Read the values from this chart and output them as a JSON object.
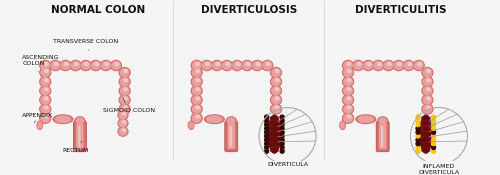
{
  "background_color": "#f5f5f5",
  "title1": "NORMAL COLON",
  "title2": "DIVERTICULOSIS",
  "title3": "DIVERTICULITIS",
  "colon_outer": "#d4706a",
  "colon_mid": "#e8a0a0",
  "colon_inner": "#f2c0c0",
  "colon_highlight": "#f8d8d8",
  "colon_shadow": "#b84040",
  "inflamed_dark": "#7a1010",
  "inflamed_mid": "#8b1515",
  "inflamed_dot_color": "#f5c518",
  "label_color": "#111111",
  "label_fontsize": 4.5,
  "title_fontsize": 7.5,
  "divider_color": "#cccccc"
}
